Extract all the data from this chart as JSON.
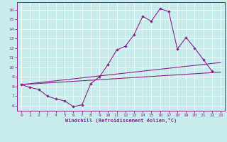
{
  "xlabel": "Windchill (Refroidissement éolien,°C)",
  "bg_color": "#c8ecec",
  "line_color": "#882288",
  "grid_color": "#ffffff",
  "xlim": [
    -0.5,
    23.5
  ],
  "ylim": [
    5.5,
    16.8
  ],
  "xticks": [
    0,
    1,
    2,
    3,
    4,
    5,
    6,
    7,
    8,
    9,
    10,
    11,
    12,
    13,
    14,
    15,
    16,
    17,
    18,
    19,
    20,
    21,
    22,
    23
  ],
  "yticks": [
    6,
    7,
    8,
    9,
    10,
    11,
    12,
    13,
    14,
    15,
    16
  ],
  "line1_x": [
    0,
    1,
    2,
    3,
    4,
    5,
    6,
    7,
    8,
    9,
    10,
    11,
    12,
    13,
    14,
    15,
    16,
    17,
    18,
    19,
    20,
    21,
    22
  ],
  "line1_y": [
    8.2,
    7.9,
    7.7,
    7.0,
    6.7,
    6.5,
    5.9,
    6.1,
    8.3,
    9.0,
    10.3,
    11.8,
    12.2,
    13.4,
    15.3,
    14.8,
    16.1,
    15.8,
    11.9,
    13.1,
    12.0,
    10.8,
    9.6
  ],
  "line2_x": [
    0,
    23
  ],
  "line2_y": [
    8.2,
    9.5
  ],
  "line3_x": [
    0,
    23
  ],
  "line3_y": [
    8.2,
    10.5
  ]
}
